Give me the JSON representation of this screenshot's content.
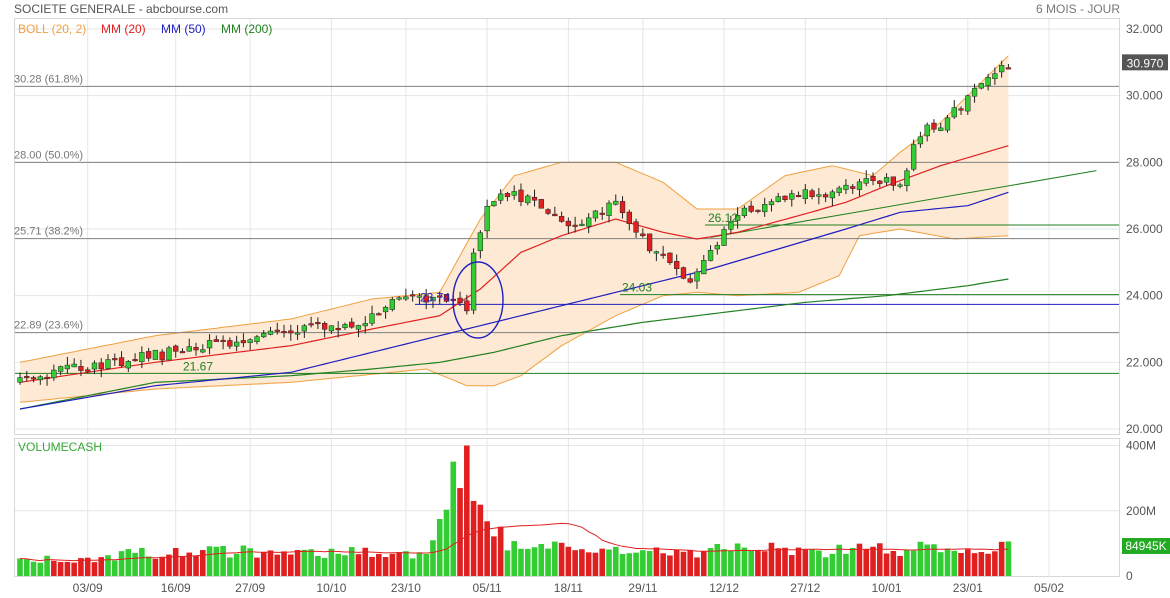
{
  "header": {
    "title": "SOCIETE GENERALE - abcbourse.com",
    "period": "6 MOIS - JOUR"
  },
  "legend": [
    {
      "label": "BOLL (20, 2)",
      "color": "#f0a040"
    },
    {
      "label": "MM (20)",
      "color": "#e02020"
    },
    {
      "label": "MM (50)",
      "color": "#2020c0"
    },
    {
      "label": "MM (200)",
      "color": "#208020"
    }
  ],
  "colors": {
    "up": "#33cc33",
    "down": "#e02020",
    "boll_fill": "#fde9d4",
    "boll_line": "#f0a040",
    "grid": "#e6e6e6",
    "fib": "#808080",
    "trend": "#208020",
    "circle": "#2020c0"
  },
  "price_badge": "30.970",
  "volume_badge": "84945K",
  "volume_label": "VOLUMECASH",
  "fib_levels": [
    {
      "label": "30.28  (61.8%)",
      "value": 30.28
    },
    {
      "label": "28.00  (50.0%)",
      "value": 28.0
    },
    {
      "label": "25.71  (38.2%)",
      "value": 25.71
    },
    {
      "label": "22.89  (23.6%)",
      "value": 22.89
    }
  ],
  "annotations": [
    {
      "text": "21.67",
      "value": 21.67
    },
    {
      "text": "23.74",
      "value": 23.74
    },
    {
      "text": "24.03",
      "value": 24.03
    },
    {
      "text": "26.12",
      "value": 26.12
    }
  ],
  "chart_data": [
    {
      "type": "candlestick",
      "title": "SOCIETE GENERALE - abcbourse.com",
      "x_ticks": [
        "03/09",
        "16/09",
        "27/09",
        "10/10",
        "23/10",
        "05/11",
        "18/11",
        "29/11",
        "12/12",
        "27/12",
        "10/01",
        "23/01",
        "05/02"
      ],
      "y_ticks": [
        "32.000",
        "30.000",
        "28.000",
        "26.000",
        "24.000",
        "22.000",
        "20.000"
      ],
      "ylim": [
        19.85,
        32.3
      ],
      "close_key_points": [
        [
          0,
          21.4
        ],
        [
          10,
          21.9
        ],
        [
          20,
          22.2
        ],
        [
          30,
          22.6
        ],
        [
          40,
          23.0
        ],
        [
          50,
          23.2
        ],
        [
          55,
          23.9
        ],
        [
          62,
          23.8
        ],
        [
          66,
          23.6
        ],
        [
          67,
          25.3
        ],
        [
          69,
          26.8
        ],
        [
          72,
          27.1
        ],
        [
          78,
          26.6
        ],
        [
          82,
          26.0
        ],
        [
          88,
          26.9
        ],
        [
          92,
          25.7
        ],
        [
          94,
          25.3
        ],
        [
          97,
          24.8
        ],
        [
          99,
          24.4
        ],
        [
          102,
          25.4
        ],
        [
          106,
          26.5
        ],
        [
          113,
          27.0
        ],
        [
          122,
          27.2
        ],
        [
          126,
          27.6
        ],
        [
          130,
          27.3
        ],
        [
          133,
          28.9
        ],
        [
          137,
          29.3
        ],
        [
          140,
          30.0
        ],
        [
          146,
          30.97
        ]
      ],
      "indicators": {
        "boll_upper": [
          [
            0,
            22.0
          ],
          [
            20,
            22.8
          ],
          [
            40,
            23.3
          ],
          [
            52,
            23.9
          ],
          [
            62,
            24.1
          ],
          [
            68,
            26.3
          ],
          [
            73,
            27.6
          ],
          [
            80,
            28.0
          ],
          [
            88,
            28.0
          ],
          [
            95,
            27.4
          ],
          [
            100,
            26.6
          ],
          [
            106,
            26.6
          ],
          [
            113,
            27.6
          ],
          [
            120,
            27.9
          ],
          [
            126,
            27.6
          ],
          [
            130,
            28.3
          ],
          [
            136,
            29.2
          ],
          [
            146,
            31.2
          ]
        ],
        "boll_lower": [
          [
            0,
            20.8
          ],
          [
            20,
            21.2
          ],
          [
            40,
            21.4
          ],
          [
            60,
            21.8
          ],
          [
            66,
            21.3
          ],
          [
            70,
            21.3
          ],
          [
            74,
            21.6
          ],
          [
            80,
            22.5
          ],
          [
            88,
            23.4
          ],
          [
            95,
            24.0
          ],
          [
            100,
            24.1
          ],
          [
            106,
            24.0
          ],
          [
            115,
            24.1
          ],
          [
            121,
            24.6
          ],
          [
            124,
            25.8
          ],
          [
            130,
            26.0
          ],
          [
            138,
            25.7
          ],
          [
            146,
            25.8
          ]
        ],
        "ma20": [
          [
            0,
            21.4
          ],
          [
            20,
            22.0
          ],
          [
            40,
            22.5
          ],
          [
            52,
            23.0
          ],
          [
            62,
            23.4
          ],
          [
            68,
            24.2
          ],
          [
            74,
            25.3
          ],
          [
            80,
            25.8
          ],
          [
            88,
            26.3
          ],
          [
            95,
            25.9
          ],
          [
            100,
            25.7
          ],
          [
            106,
            25.9
          ],
          [
            115,
            26.4
          ],
          [
            122,
            26.8
          ],
          [
            128,
            27.3
          ],
          [
            136,
            27.9
          ],
          [
            146,
            28.5
          ]
        ],
        "ma50": [
          [
            0,
            20.6
          ],
          [
            20,
            21.3
          ],
          [
            40,
            21.7
          ],
          [
            52,
            22.3
          ],
          [
            62,
            22.8
          ],
          [
            72,
            23.3
          ],
          [
            82,
            23.8
          ],
          [
            92,
            24.3
          ],
          [
            102,
            24.8
          ],
          [
            112,
            25.4
          ],
          [
            122,
            26.0
          ],
          [
            130,
            26.5
          ],
          [
            140,
            26.7
          ],
          [
            146,
            27.1
          ]
        ],
        "ma200": [
          [
            0,
            20.6
          ],
          [
            20,
            21.4
          ],
          [
            40,
            21.6
          ],
          [
            52,
            21.8
          ],
          [
            62,
            22.0
          ],
          [
            70,
            22.3
          ],
          [
            80,
            22.8
          ],
          [
            92,
            23.2
          ],
          [
            104,
            23.5
          ],
          [
            116,
            23.8
          ],
          [
            128,
            24.0
          ],
          [
            140,
            24.3
          ],
          [
            146,
            24.5
          ]
        ]
      },
      "support_lines": [
        21.67,
        23.74,
        24.03,
        26.12
      ],
      "trend_line": {
        "from": [
          102,
          25.75
        ],
        "to": [
          159,
          27.75
        ]
      }
    },
    {
      "type": "bar",
      "title": "VOLUMECASH",
      "y_ticks": [
        "400M",
        "200M",
        "0"
      ],
      "ylim": [
        0,
        420
      ],
      "volume_key_points": [
        [
          0,
          45
        ],
        [
          10,
          55
        ],
        [
          20,
          70
        ],
        [
          30,
          75
        ],
        [
          40,
          65
        ],
        [
          50,
          70
        ],
        [
          60,
          55
        ],
        [
          66,
          400
        ],
        [
          67,
          230
        ],
        [
          69,
          150
        ],
        [
          72,
          100
        ],
        [
          80,
          80
        ],
        [
          90,
          70
        ],
        [
          100,
          75
        ],
        [
          110,
          80
        ],
        [
          120,
          75
        ],
        [
          130,
          80
        ],
        [
          140,
          85
        ],
        [
          146,
          85
        ]
      ]
    }
  ]
}
